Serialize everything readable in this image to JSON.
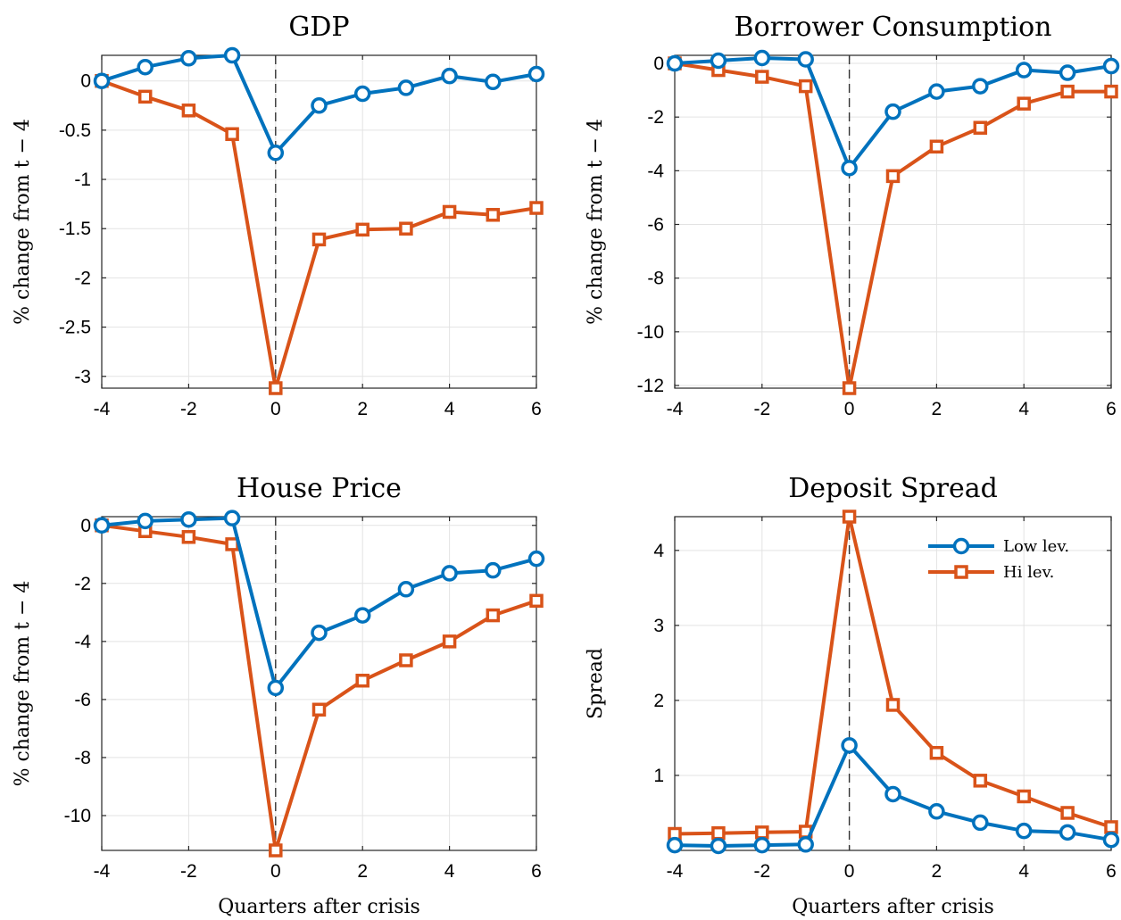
{
  "chart_data": [
    {
      "type": "line",
      "title": "GDP",
      "ylabel": "% change from t − 4",
      "xlabel": "",
      "xlim": [
        -4,
        6
      ],
      "ylim": [
        -3.12,
        0.26
      ],
      "xticks": [
        -4,
        -2,
        0,
        2,
        4,
        6
      ],
      "yticks": [
        0,
        -0.5,
        -1,
        -1.5,
        -2,
        -2.5,
        -3
      ],
      "ytick_labels": [
        "0",
        "-0.5",
        "-1",
        "-1.5",
        "-2",
        "-2.5",
        "-3"
      ],
      "grid": true,
      "vline_x": 0,
      "x": [
        -4,
        -3,
        -2,
        -1,
        0,
        1,
        2,
        3,
        4,
        5,
        6
      ],
      "series": [
        {
          "name": "Low lev.",
          "marker": "circle",
          "color": "#0072bd",
          "values": [
            0,
            0.14,
            0.23,
            0.26,
            -0.73,
            -0.25,
            -0.13,
            -0.07,
            0.05,
            -0.01,
            0.07
          ]
        },
        {
          "name": "Hi lev.",
          "marker": "square",
          "color": "#d95319",
          "values": [
            0,
            -0.16,
            -0.3,
            -0.54,
            -3.12,
            -1.61,
            -1.51,
            -1.5,
            -1.33,
            -1.36,
            -1.29
          ]
        }
      ]
    },
    {
      "type": "line",
      "title": "Borrower Consumption",
      "ylabel": "% change from t − 4",
      "xlabel": "",
      "xlim": [
        -4,
        6
      ],
      "ylim": [
        -12.1,
        0.3
      ],
      "xticks": [
        -4,
        -2,
        0,
        2,
        4,
        6
      ],
      "yticks": [
        0,
        -2,
        -4,
        -6,
        -8,
        -10,
        -12
      ],
      "ytick_labels": [
        "0",
        "-2",
        "-4",
        "-6",
        "-8",
        "-10",
        "-12"
      ],
      "grid": true,
      "vline_x": 0,
      "x": [
        -4,
        -3,
        -2,
        -1,
        0,
        1,
        2,
        3,
        4,
        5,
        6
      ],
      "series": [
        {
          "name": "Low lev.",
          "marker": "circle",
          "color": "#0072bd",
          "values": [
            0,
            0.1,
            0.2,
            0.15,
            -3.9,
            -1.8,
            -1.05,
            -0.85,
            -0.25,
            -0.35,
            -0.1
          ]
        },
        {
          "name": "Hi lev.",
          "marker": "square",
          "color": "#d95319",
          "values": [
            0,
            -0.25,
            -0.5,
            -0.85,
            -12.1,
            -4.2,
            -3.1,
            -2.4,
            -1.5,
            -1.05,
            -1.05
          ]
        }
      ]
    },
    {
      "type": "line",
      "title": "House Price",
      "ylabel": "% change from t − 4",
      "xlabel": "Quarters after crisis",
      "xlim": [
        -4,
        6
      ],
      "ylim": [
        -11.2,
        0.3
      ],
      "xticks": [
        -4,
        -2,
        0,
        2,
        4,
        6
      ],
      "yticks": [
        0,
        -2,
        -4,
        -6,
        -8,
        -10
      ],
      "ytick_labels": [
        "0",
        "-2",
        "-4",
        "-6",
        "-8",
        "-10"
      ],
      "grid": true,
      "vline_x": 0,
      "x": [
        -4,
        -3,
        -2,
        -1,
        0,
        1,
        2,
        3,
        4,
        5,
        6
      ],
      "series": [
        {
          "name": "Low lev.",
          "marker": "circle",
          "color": "#0072bd",
          "values": [
            0,
            0.15,
            0.2,
            0.25,
            -5.6,
            -3.7,
            -3.1,
            -2.2,
            -1.65,
            -1.55,
            -1.15
          ]
        },
        {
          "name": "Hi lev.",
          "marker": "square",
          "color": "#d95319",
          "values": [
            0,
            -0.2,
            -0.4,
            -0.65,
            -11.2,
            -6.35,
            -5.35,
            -4.65,
            -4.0,
            -3.1,
            -2.6
          ]
        }
      ]
    },
    {
      "type": "line",
      "title": "Deposit Spread",
      "ylabel": "Spread",
      "xlabel": "Quarters after crisis",
      "xlim": [
        -4,
        6
      ],
      "ylim": [
        0,
        4.45
      ],
      "xticks": [
        -4,
        -2,
        0,
        2,
        4,
        6
      ],
      "yticks": [
        1,
        2,
        3,
        4
      ],
      "ytick_labels": [
        "1",
        "2",
        "3",
        "4"
      ],
      "grid": true,
      "vline_x": 0,
      "legend": "top-right",
      "x": [
        -4,
        -3,
        -2,
        -1,
        0,
        1,
        2,
        3,
        4,
        5,
        6
      ],
      "series": [
        {
          "name": "Low lev.",
          "marker": "circle",
          "color": "#0072bd",
          "values": [
            0.07,
            0.06,
            0.07,
            0.08,
            1.4,
            0.75,
            0.52,
            0.37,
            0.26,
            0.24,
            0.14
          ]
        },
        {
          "name": "Hi lev.",
          "marker": "square",
          "color": "#d95319",
          "values": [
            0.22,
            0.23,
            0.24,
            0.25,
            4.45,
            1.94,
            1.3,
            0.93,
            0.72,
            0.5,
            0.31
          ]
        }
      ]
    }
  ]
}
